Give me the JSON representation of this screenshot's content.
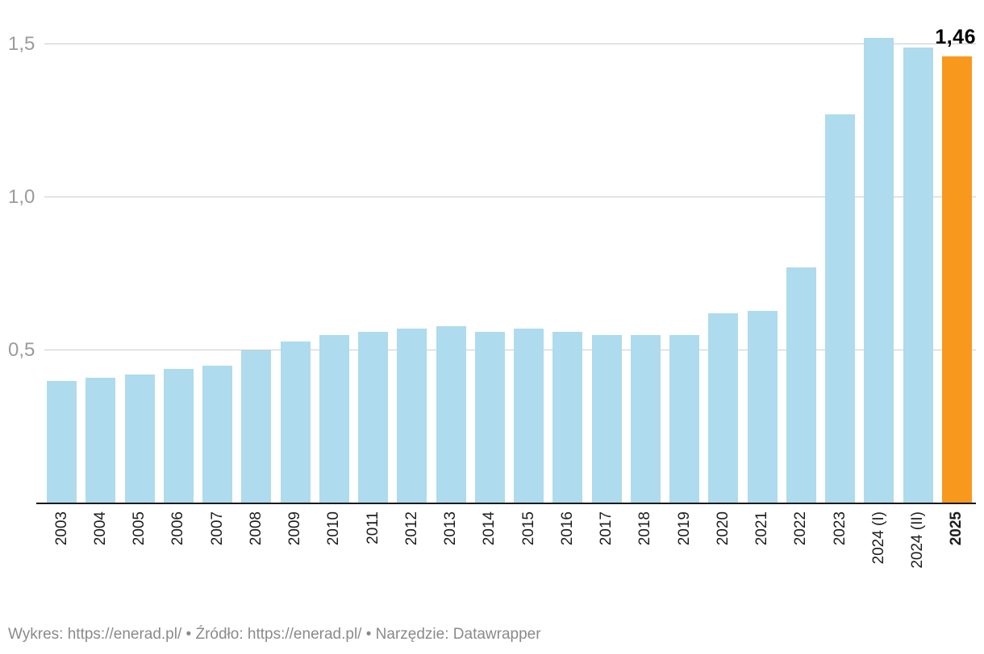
{
  "chart_data": {
    "type": "bar",
    "title": "",
    "xlabel": "",
    "ylabel": "",
    "categories": [
      "2003",
      "2004",
      "2005",
      "2006",
      "2007",
      "2008",
      "2009",
      "2010",
      "2011",
      "2012",
      "2013",
      "2014",
      "2015",
      "2016",
      "2017",
      "2018",
      "2019",
      "2020",
      "2021",
      "2022",
      "2023",
      "2024 (I)",
      "2024 (II)",
      "2025"
    ],
    "values": [
      0.4,
      0.41,
      0.42,
      0.44,
      0.45,
      0.5,
      0.53,
      0.55,
      0.56,
      0.57,
      0.58,
      0.56,
      0.57,
      0.56,
      0.55,
      0.55,
      0.55,
      0.62,
      0.63,
      0.77,
      1.27,
      1.52,
      1.49,
      1.46
    ],
    "highlight_index": 23,
    "annotation": "1,46",
    "ylim": [
      0,
      1.5
    ],
    "yticks": [
      {
        "value": 0.5,
        "label": "0,5"
      },
      {
        "value": 1.0,
        "label": "1,0"
      },
      {
        "value": 1.5,
        "label": "1,5"
      }
    ],
    "grid": true,
    "legend": null,
    "colors": {
      "bar": "#AEDBED",
      "highlight": "#F8991D",
      "gridline": "#CCCCCC",
      "axis_line": "#18191A",
      "tick_label": "#9B9B9B",
      "x_label": "#1D1D1D",
      "annotation": "#000000",
      "footer": "#8A8A8A"
    }
  },
  "footer": {
    "chart_label": "Wykres: ",
    "chart_url": "https://enerad.pl/",
    "separator": " • ",
    "source_label": "Źródło: ",
    "source_url": "https://enerad.pl/",
    "tool_label": "Narzędzie: ",
    "tool_name": "Datawrapper"
  }
}
